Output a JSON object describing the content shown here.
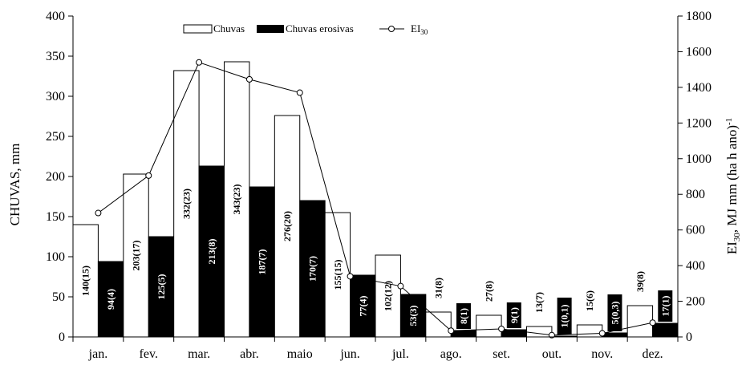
{
  "chart_data": {
    "type": "bar",
    "categories": [
      "jan.",
      "fev.",
      "mar.",
      "abr.",
      "maio",
      "jun.",
      "jul.",
      "ago.",
      "set.",
      "out.",
      "nov.",
      "dez."
    ],
    "series": [
      {
        "name": "Chuvas",
        "kind": "bar",
        "axis": "left",
        "fill": "#ffffff",
        "values": [
          140,
          203,
          332,
          343,
          276,
          155,
          102,
          31,
          27,
          13,
          15,
          39
        ],
        "labels": [
          "140(15)",
          "203(17)",
          "332(23)",
          "343(23)",
          "276(20)",
          "155(15)",
          "102(12)",
          "31(8)",
          "27(8)",
          "13(7)",
          "15(6)",
          "39(8)"
        ]
      },
      {
        "name": "Chuvas erosivas",
        "kind": "bar",
        "axis": "left",
        "fill": "#000000",
        "values": [
          94,
          125,
          213,
          187,
          170,
          77,
          53,
          8,
          9,
          1,
          5,
          17
        ],
        "labels": [
          "94(4)",
          "125(5)",
          "213(8)",
          "187(7)",
          "170(7)",
          "77(4)",
          "53(3)",
          "8(1)",
          "9(1)",
          "1(0,1)",
          "5(0,3)",
          "17(1)"
        ]
      },
      {
        "name": "EI30",
        "kind": "line",
        "axis": "right",
        "values": [
          695,
          905,
          1540,
          1445,
          1370,
          340,
          285,
          35,
          45,
          10,
          20,
          80
        ]
      }
    ],
    "ylabel": "CHUVAS, mm",
    "ylim": [
      0,
      400
    ],
    "yticks": [
      0,
      50,
      100,
      150,
      200,
      250,
      300,
      350,
      400
    ],
    "y2label_parts": [
      "EI",
      "30",
      ", MJ  mm (ha h ano)",
      "-1"
    ],
    "y2lim": [
      0,
      1800
    ],
    "y2ticks": [
      0,
      200,
      400,
      600,
      800,
      1000,
      1200,
      1400,
      1600,
      1800
    ],
    "grid": false,
    "legend_position": "top-center",
    "legend": {
      "chuvas": "Chuvas",
      "erosivas": "Chuvas erosivas",
      "ei_main": "EI",
      "ei_sub": "30"
    }
  }
}
